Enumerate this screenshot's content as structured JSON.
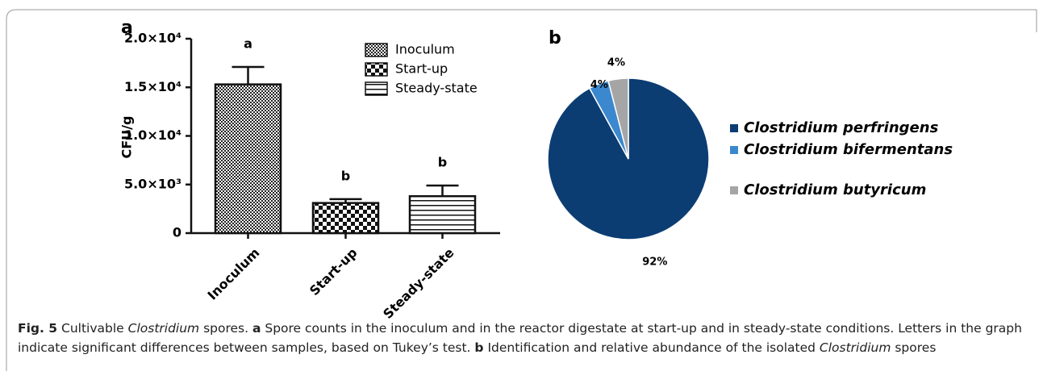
{
  "chart_data": [
    {
      "type": "bar",
      "panel": "a",
      "ylabel": "CFU/g",
      "categories": [
        "Inoculum",
        "Start-up",
        "Steady-state"
      ],
      "values": [
        15300,
        3100,
        3800
      ],
      "errors": [
        1800,
        400,
        1100
      ],
      "annotations": [
        "a",
        "b",
        "b"
      ],
      "patterns": [
        "fine-checker",
        "checker",
        "horizontal-lines"
      ],
      "ylim": [
        0,
        20000
      ],
      "yticks": [
        0,
        {
          "value": 5000,
          "label": "5.0×10³"
        },
        {
          "value": 10000,
          "label": "1.0×10⁴"
        },
        {
          "value": 15000,
          "label": "1.5×10⁴"
        },
        {
          "value": 20000,
          "label": "2.0×10⁴"
        }
      ]
    },
    {
      "type": "pie",
      "panel": "b",
      "categories": [
        "Clostridium perfringens",
        "Clostridium bifermentans",
        "Clostridium butyricum"
      ],
      "values": [
        92,
        4,
        4
      ],
      "value_labels": [
        "92%",
        "4%",
        "4%"
      ],
      "colors": [
        "#0b3d73",
        "#3b88cf",
        "#a5a5a5"
      ]
    }
  ],
  "caption": [
    "Fig. 5",
    "  Cultivable ",
    "Clostridium",
    " spores. ",
    "a",
    " Spore counts in the inoculum and in the reactor digestate at start-up and in steady-state conditions. Letters in the graph indicate significant differences between samples, based on Tukey’s test. ",
    "b",
    " Identification and relative abundance of the isolated ",
    "Clostridium",
    " spores"
  ]
}
